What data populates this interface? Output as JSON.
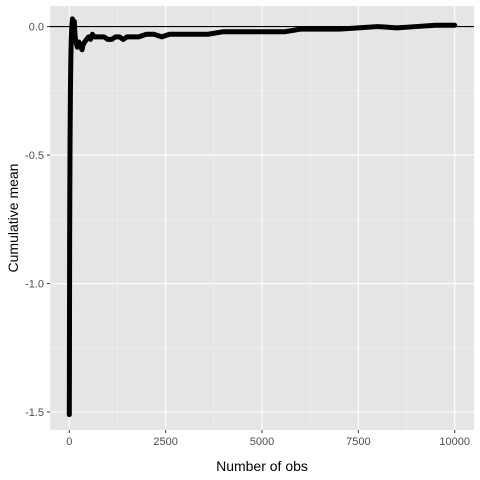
{
  "chart_data": {
    "type": "line",
    "xlabel": "Number of obs",
    "ylabel": "Cumulative mean",
    "xlim": [
      -500,
      10500
    ],
    "ylim": [
      -1.57,
      0.08
    ],
    "x_ticks": [
      0,
      2500,
      5000,
      7500,
      10000
    ],
    "x_tick_labels": [
      "0",
      "2500",
      "5000",
      "7500",
      "10000"
    ],
    "y_ticks": [
      0.0,
      -0.5,
      -1.0,
      -1.5
    ],
    "y_tick_labels": [
      "0.0",
      "-0.5",
      "-1.0",
      "-1.5"
    ],
    "reference_line_y": 0.0,
    "grid": true,
    "series": [
      {
        "x": [
          1,
          5,
          10,
          20,
          30,
          40,
          50,
          60,
          70,
          80,
          90,
          100,
          110,
          120,
          130,
          140,
          150,
          160,
          175,
          190,
          210,
          230,
          250,
          270,
          300,
          330,
          360,
          400,
          450,
          500,
          550,
          600,
          650,
          700,
          800,
          900,
          1000,
          1100,
          1200,
          1300,
          1400,
          1500,
          1600,
          1800,
          2000,
          2200,
          2400,
          2600,
          2800,
          3000,
          3300,
          3600,
          4000,
          4400,
          4800,
          5200,
          5600,
          6000,
          6500,
          7000,
          7500,
          8000,
          8500,
          9000,
          9500,
          10000
        ],
        "y": [
          -1.51,
          -1.2,
          -0.8,
          -0.45,
          -0.25,
          -0.13,
          -0.06,
          -0.02,
          0.01,
          0.03,
          0.02,
          0.0,
          -0.03,
          0.01,
          0.02,
          -0.01,
          -0.03,
          -0.05,
          -0.06,
          -0.07,
          -0.08,
          -0.07,
          -0.06,
          -0.07,
          -0.08,
          -0.09,
          -0.07,
          -0.06,
          -0.05,
          -0.04,
          -0.05,
          -0.03,
          -0.04,
          -0.04,
          -0.04,
          -0.04,
          -0.05,
          -0.05,
          -0.04,
          -0.04,
          -0.05,
          -0.04,
          -0.04,
          -0.04,
          -0.03,
          -0.03,
          -0.04,
          -0.03,
          -0.03,
          -0.03,
          -0.03,
          -0.03,
          -0.02,
          -0.02,
          -0.02,
          -0.02,
          -0.02,
          -0.01,
          -0.01,
          -0.01,
          -0.005,
          0.0,
          -0.005,
          0.0,
          0.005,
          0.005
        ]
      }
    ]
  },
  "colors": {
    "panel_background": "#e5e5e5",
    "grid_major": "#ffffff",
    "grid_minor": "#f2f2f2",
    "series": "#000000",
    "reference_line": "#000000",
    "tick_label": "#4d4d4d"
  }
}
